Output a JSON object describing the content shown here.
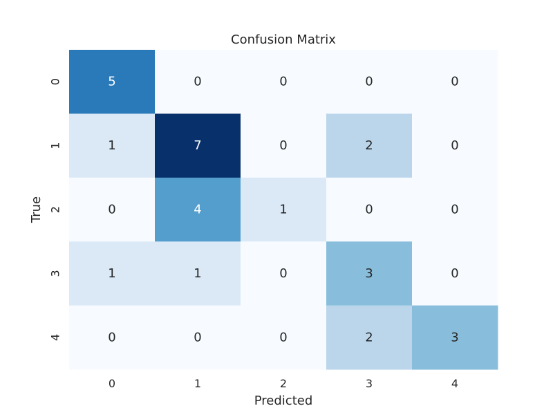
{
  "chart_data": {
    "type": "heatmap",
    "title": "Confusion Matrix",
    "xlabel": "Predicted",
    "ylabel": "True",
    "x_categories": [
      "0",
      "1",
      "2",
      "3",
      "4"
    ],
    "y_categories": [
      "0",
      "1",
      "2",
      "3",
      "4"
    ],
    "values": [
      [
        5,
        0,
        0,
        0,
        0
      ],
      [
        1,
        7,
        0,
        2,
        0
      ],
      [
        0,
        4,
        1,
        0,
        0
      ],
      [
        1,
        1,
        0,
        3,
        0
      ],
      [
        0,
        0,
        0,
        2,
        3
      ]
    ],
    "color_range": [
      0,
      7
    ],
    "colormap": "Blues",
    "colorbar": false,
    "grid": false
  }
}
